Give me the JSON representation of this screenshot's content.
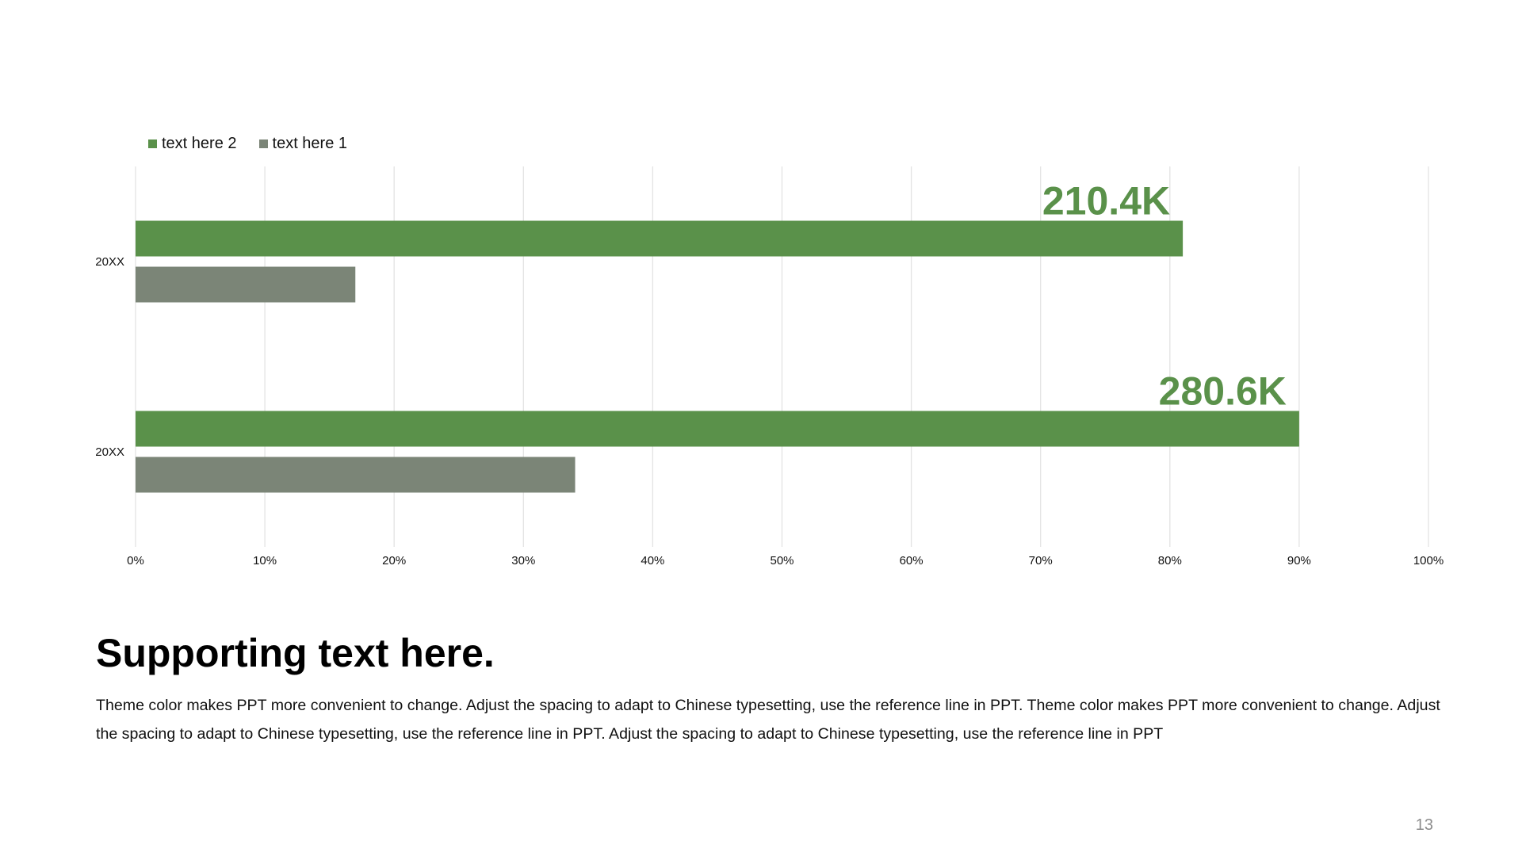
{
  "legend": [
    {
      "label": "text here 2",
      "color": "#5a914a"
    },
    {
      "label": "text here 1",
      "color": "#7b8577"
    }
  ],
  "chart_data": {
    "type": "bar",
    "orientation": "horizontal",
    "categories": [
      "20XX",
      "20XX"
    ],
    "series": [
      {
        "name": "text here 2",
        "values": [
          81,
          90
        ],
        "color": "#5a914a"
      },
      {
        "name": "text here 1",
        "values": [
          17,
          34
        ],
        "color": "#7b8577"
      }
    ],
    "data_labels": [
      "210.4K",
      "280.6K"
    ],
    "data_label_color": "#5a914a",
    "x_ticks": [
      "0%",
      "10%",
      "20%",
      "30%",
      "40%",
      "50%",
      "60%",
      "70%",
      "80%",
      "90%",
      "100%"
    ],
    "xlim": [
      0,
      100
    ],
    "grid": true,
    "legend_position": "top-left"
  },
  "supporting": {
    "title": "Supporting text here.",
    "body": "Theme color makes PPT more convenient  to change. Adjust the spacing to adapt to Chinese   typesetting, use the reference line  in PPT. Theme color makes PPT more convenient  to change. Adjust the spacing to adapt to Chinese typesetting, use the reference line  in PPT. Adjust the spacing to adapt to Chinese  typesetting, use the reference line  in PPT"
  },
  "page_number": "13"
}
